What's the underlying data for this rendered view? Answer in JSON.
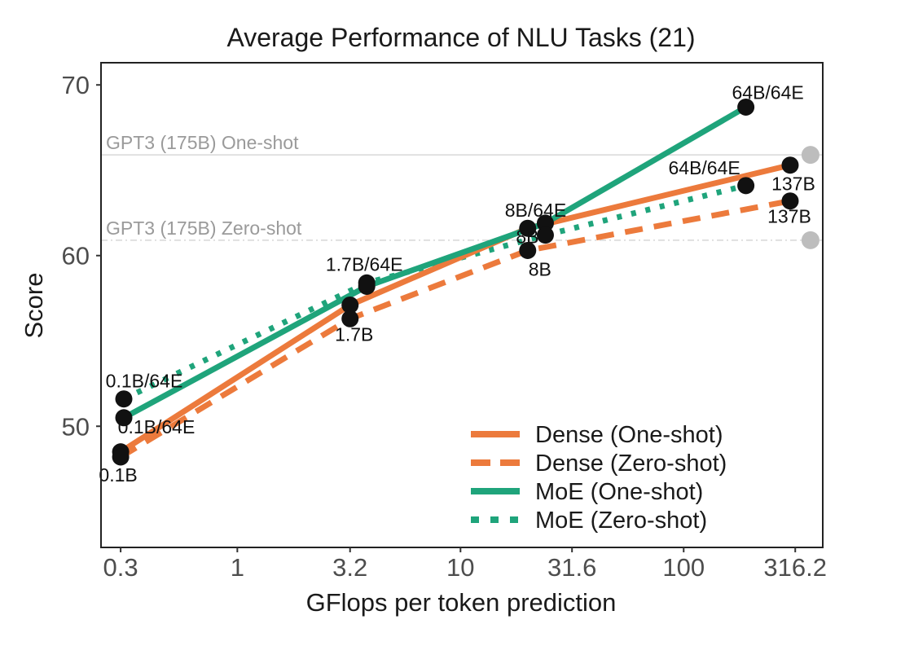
{
  "chart_data": {
    "type": "line",
    "title": "Average Performance of NLU Tasks (21)",
    "xlabel": "GFlops per token prediction",
    "ylabel": "Score",
    "x_scale": "log10",
    "xlim": [
      0.245,
      420
    ],
    "ylim": [
      42.9,
      71.3
    ],
    "x_ticks": [
      0.3,
      1,
      3.2,
      10,
      31.6,
      100,
      316.2
    ],
    "x_tick_labels": [
      "0.3",
      "1",
      "3.2",
      "10",
      "31.6",
      "100",
      "316.2"
    ],
    "y_ticks": [
      50,
      60,
      70
    ],
    "y_tick_labels": [
      "50",
      "60",
      "70"
    ],
    "grid": false,
    "legend_position": "bottom-right",
    "reference_lines": [
      {
        "label": "GPT3 (175B) One-shot",
        "value": 65.9,
        "style": "solid"
      },
      {
        "label": "GPT3 (175B) Zero-shot",
        "value": 60.9,
        "style": "dotdash"
      }
    ],
    "reference_points": [
      {
        "x": 370,
        "y": 65.9
      },
      {
        "x": 370,
        "y": 60.9
      }
    ],
    "series": [
      {
        "name": "Dense (One-shot)",
        "color": "#ec7a3c",
        "style": "solid",
        "points": [
          {
            "x": 0.3,
            "y": 48.5,
            "label": ""
          },
          {
            "x": 3.2,
            "y": 57.1,
            "label": ""
          },
          {
            "x": 20,
            "y": 61.6,
            "label": ""
          },
          {
            "x": 300,
            "y": 65.3,
            "label": "137B"
          }
        ]
      },
      {
        "name": "Dense (Zero-shot)",
        "color": "#ec7a3c",
        "style": "dashed",
        "points": [
          {
            "x": 0.3,
            "y": 48.2,
            "label": "0.1B"
          },
          {
            "x": 3.2,
            "y": 56.3,
            "label": "1.7B"
          },
          {
            "x": 20,
            "y": 60.3,
            "label": "8B"
          },
          {
            "x": 300,
            "y": 63.2,
            "label": "137B"
          }
        ]
      },
      {
        "name": "MoE (One-shot)",
        "color": "#1fa47b",
        "style": "solid",
        "points": [
          {
            "x": 0.31,
            "y": 50.5,
            "label": "0.1B/64E"
          },
          {
            "x": 3.8,
            "y": 58.2,
            "label": ""
          },
          {
            "x": 24,
            "y": 61.9,
            "label": "8B/64E"
          },
          {
            "x": 190,
            "y": 68.7,
            "label": "64B/64E"
          }
        ]
      },
      {
        "name": "MoE (Zero-shot)",
        "color": "#1fa47b",
        "style": "dotted",
        "points": [
          {
            "x": 0.31,
            "y": 51.6,
            "label": "0.1B/64E"
          },
          {
            "x": 3.8,
            "y": 58.4,
            "label": "1.7B/64E"
          },
          {
            "x": 24,
            "y": 61.2,
            "label": "8B"
          },
          {
            "x": 190,
            "y": 64.1,
            "label": "64B/64E"
          }
        ]
      }
    ]
  }
}
